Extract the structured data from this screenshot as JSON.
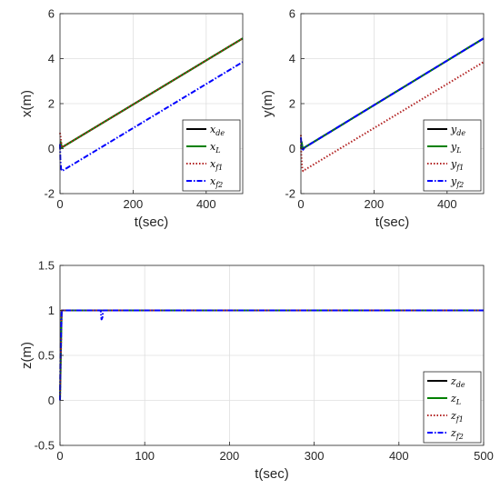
{
  "chart_data": [
    {
      "id": "px",
      "type": "line",
      "xlabel": "t(sec)",
      "ylabel": "x(m)",
      "xlim": [
        0,
        500
      ],
      "ylim": [
        -2,
        6
      ],
      "xticks": [
        0,
        200,
        400
      ],
      "yticks": [
        -2,
        0,
        2,
        4,
        6
      ],
      "grid": true,
      "legend_position": "lower-right",
      "series": [
        {
          "name": "x_de",
          "label_main": "x",
          "label_sub": "de",
          "color": "#000000",
          "dash": "",
          "x": [
            5,
            500
          ],
          "y": [
            0.05,
            4.9
          ]
        },
        {
          "name": "x_L",
          "label_main": "x",
          "label_sub": "L",
          "color": "#008000",
          "dash": "",
          "x": [
            0,
            2,
            5,
            10,
            500
          ],
          "y": [
            0.0,
            0.3,
            0.05,
            0.1,
            4.9
          ]
        },
        {
          "name": "x_f1",
          "label_main": "x",
          "label_sub": "f1",
          "color": "#b22222",
          "dash": "1.5 2",
          "x": [
            0,
            1,
            3,
            6,
            10,
            500
          ],
          "y": [
            0.7,
            0.6,
            0.3,
            0.05,
            0.1,
            4.9
          ]
        },
        {
          "name": "x_f2",
          "label_main": "x",
          "label_sub": "f2",
          "color": "#0000ff",
          "dash": "6 2 1.5 2",
          "x": [
            0,
            1,
            3,
            6,
            10,
            500
          ],
          "y": [
            0.2,
            -0.5,
            -0.9,
            -1.0,
            -0.95,
            3.85
          ]
        }
      ]
    },
    {
      "id": "py",
      "type": "line",
      "xlabel": "t(sec)",
      "ylabel": "y(m)",
      "xlim": [
        0,
        500
      ],
      "ylim": [
        -2,
        6
      ],
      "xticks": [
        0,
        200,
        400
      ],
      "yticks": [
        -2,
        0,
        2,
        4,
        6
      ],
      "grid": true,
      "legend_position": "lower-right",
      "series": [
        {
          "name": "y_de",
          "label_main": "y",
          "label_sub": "de",
          "color": "#000000",
          "dash": "",
          "x": [
            5,
            500
          ],
          "y": [
            0.0,
            4.9
          ]
        },
        {
          "name": "y_L",
          "label_main": "y",
          "label_sub": "L",
          "color": "#008000",
          "dash": "",
          "x": [
            0,
            2,
            5,
            10,
            500
          ],
          "y": [
            0.0,
            0.3,
            0.0,
            0.05,
            4.9
          ]
        },
        {
          "name": "y_f1",
          "label_main": "y",
          "label_sub": "f1",
          "color": "#b22222",
          "dash": "1.5 2",
          "x": [
            0,
            1,
            3,
            6,
            10,
            500
          ],
          "y": [
            0.6,
            -0.3,
            -0.8,
            -1.0,
            -0.95,
            3.85
          ]
        },
        {
          "name": "y_f2",
          "label_main": "y",
          "label_sub": "f2",
          "color": "#0000ff",
          "dash": "6 2 1.5 2",
          "x": [
            0,
            1,
            3,
            6,
            10,
            500
          ],
          "y": [
            0.5,
            0.2,
            0.0,
            -0.05,
            0.05,
            4.9
          ]
        }
      ]
    },
    {
      "id": "pz",
      "type": "line",
      "xlabel": "t(sec)",
      "ylabel": "z(m)",
      "xlim": [
        0,
        500
      ],
      "ylim": [
        -0.5,
        1.5
      ],
      "xticks": [
        0,
        100,
        200,
        300,
        400,
        500
      ],
      "yticks": [
        -0.5,
        0,
        0.5,
        1,
        1.5
      ],
      "ytick_labels": [
        "-0.5",
        "0",
        "0.5",
        "1",
        "1.5"
      ],
      "grid": true,
      "legend_position": "lower-right",
      "series": [
        {
          "name": "z_de",
          "label_main": "z",
          "label_sub": "de",
          "color": "#000000",
          "dash": "",
          "x": [
            2,
            500
          ],
          "y": [
            1,
            1
          ]
        },
        {
          "name": "z_L",
          "label_main": "z",
          "label_sub": "L",
          "color": "#008000",
          "dash": "",
          "x": [
            0,
            2,
            500
          ],
          "y": [
            0,
            1,
            1
          ]
        },
        {
          "name": "z_f1",
          "label_main": "z",
          "label_sub": "f1",
          "color": "#b22222",
          "dash": "1.5 2",
          "x": [
            0,
            2,
            500
          ],
          "y": [
            0,
            1,
            1
          ]
        },
        {
          "name": "z_f2",
          "label_main": "z",
          "label_sub": "f2",
          "color": "#0000ff",
          "dash": "6 2 1.5 2",
          "x": [
            0,
            0.5,
            2,
            48,
            49,
            50,
            51,
            500
          ],
          "y": [
            0,
            0.5,
            1,
            1,
            0.9,
            0.92,
            1,
            1
          ]
        }
      ]
    }
  ]
}
